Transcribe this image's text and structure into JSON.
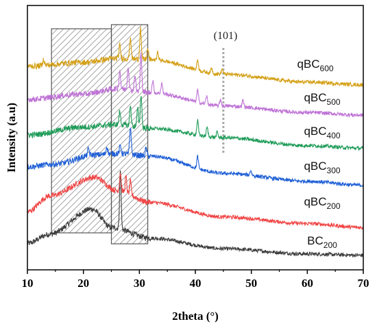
{
  "chart_data": {
    "type": "line",
    "xlabel": "2theta (°)",
    "ylabel": "Intensity (a.u)",
    "xlim": [
      10,
      70
    ],
    "xticks": [
      "10",
      "20",
      "30",
      "40",
      "50",
      "60",
      "70"
    ],
    "y_tick_labels": false,
    "grid": false,
    "legend": "none",
    "annotation": {
      "text": "(101)",
      "x": 45,
      "style": "dotted vertical line"
    },
    "highlight_regions": [
      {
        "x_start": 14.3,
        "x_end": 25,
        "fill": "hatched"
      },
      {
        "x_start": 25,
        "x_end": 31.5,
        "fill": "hatched"
      }
    ],
    "series": [
      {
        "name": "BC",
        "subscript": "200",
        "color": "#3d3d3d",
        "baseline": [
          [
            10,
            1.0
          ],
          [
            14,
            1.35
          ],
          [
            21.5,
            2.3
          ],
          [
            25,
            1.6
          ],
          [
            32,
            1.2
          ],
          [
            45,
            0.8
          ],
          [
            60,
            0.6
          ],
          [
            70,
            0.55
          ]
        ],
        "peaks": [
          [
            26.6,
            2.2
          ]
        ]
      },
      {
        "name": "qBC",
        "subscript": "200",
        "color": "#f04545",
        "baseline": [
          [
            10,
            2.2
          ],
          [
            14,
            2.8
          ],
          [
            22,
            3.5
          ],
          [
            26,
            3.0
          ],
          [
            32,
            2.55
          ],
          [
            45,
            2.0
          ],
          [
            60,
            1.75
          ],
          [
            70,
            1.6
          ]
        ],
        "peaks": [
          [
            26.6,
            0.7
          ],
          [
            27.6,
            0.6
          ],
          [
            28.4,
            0.5
          ]
        ]
      },
      {
        "name": "qBC",
        "subscript": "300",
        "color": "#1f5fd6",
        "baseline": [
          [
            10,
            3.9
          ],
          [
            15,
            4.0
          ],
          [
            22,
            4.35
          ],
          [
            26,
            4.4
          ],
          [
            32,
            4.3
          ],
          [
            45,
            3.65
          ],
          [
            60,
            3.35
          ],
          [
            70,
            3.2
          ]
        ],
        "peaks": [
          [
            20.9,
            0.25
          ],
          [
            24.2,
            0.3
          ],
          [
            26.6,
            0.3
          ],
          [
            28.4,
            1.05
          ],
          [
            31.2,
            0.3
          ],
          [
            40.4,
            0.45
          ],
          [
            49.9,
            0.2
          ]
        ]
      },
      {
        "name": "qBC",
        "subscript": "400",
        "color": "#1f9c59",
        "baseline": [
          [
            10,
            5.1
          ],
          [
            20,
            5.4
          ],
          [
            26,
            5.5
          ],
          [
            32,
            5.35
          ],
          [
            45,
            5.0
          ],
          [
            60,
            4.7
          ],
          [
            70,
            4.6
          ]
        ],
        "peaks": [
          [
            26.5,
            0.5
          ],
          [
            28.4,
            0.75
          ],
          [
            29.7,
            0.7
          ],
          [
            30.3,
            1.25
          ],
          [
            40.4,
            0.55
          ],
          [
            42.1,
            0.35
          ],
          [
            43.9,
            0.2
          ]
        ]
      },
      {
        "name": "qBC",
        "subscript": "500",
        "color": "#bf73d6",
        "baseline": [
          [
            10,
            6.45
          ],
          [
            20,
            6.65
          ],
          [
            26,
            6.85
          ],
          [
            32,
            6.7
          ],
          [
            45,
            6.2
          ],
          [
            60,
            5.95
          ],
          [
            70,
            5.85
          ]
        ],
        "peaks": [
          [
            26.5,
            0.7
          ],
          [
            28.0,
            0.9
          ],
          [
            29.2,
            0.6
          ],
          [
            30.3,
            1.45
          ],
          [
            32.4,
            0.45
          ],
          [
            34.0,
            0.4
          ],
          [
            40.4,
            0.45
          ],
          [
            42.0,
            0.3
          ],
          [
            44.5,
            0.25
          ],
          [
            48.5,
            0.25
          ]
        ]
      },
      {
        "name": "qBC",
        "subscript": "600",
        "color": "#d4a017",
        "baseline": [
          [
            10,
            7.7
          ],
          [
            20,
            7.85
          ],
          [
            26,
            8.0
          ],
          [
            32,
            7.95
          ],
          [
            45,
            7.4
          ],
          [
            60,
            7.1
          ],
          [
            70,
            7.0
          ]
        ],
        "peaks": [
          [
            12.9,
            0.25
          ],
          [
            26.5,
            0.5
          ],
          [
            28.4,
            0.8
          ],
          [
            30.2,
            1.2
          ],
          [
            31.5,
            0.4
          ],
          [
            33.3,
            0.3
          ],
          [
            40.4,
            0.4
          ],
          [
            42.9,
            0.2
          ],
          [
            44.8,
            0.2
          ]
        ]
      }
    ]
  }
}
